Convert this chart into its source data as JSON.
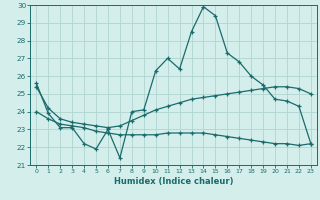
{
  "xlabel": "Humidex (Indice chaleur)",
  "bg_color": "#d4eeec",
  "grid_color": "#b0d4d0",
  "line_color": "#1a6b6b",
  "x": [
    0,
    1,
    2,
    3,
    4,
    5,
    6,
    7,
    8,
    9,
    10,
    11,
    12,
    13,
    14,
    15,
    16,
    17,
    18,
    19,
    20,
    21,
    22,
    23
  ],
  "line1": [
    25.6,
    23.9,
    23.1,
    23.1,
    22.2,
    21.9,
    23.0,
    21.4,
    24.0,
    24.1,
    26.3,
    27.0,
    26.4,
    28.5,
    29.9,
    29.4,
    27.3,
    26.8,
    26.0,
    25.5,
    24.7,
    24.6,
    24.3,
    22.2
  ],
  "line2": [
    25.4,
    24.2,
    23.6,
    23.4,
    23.3,
    23.2,
    23.1,
    23.2,
    23.5,
    23.8,
    24.1,
    24.3,
    24.5,
    24.7,
    24.8,
    24.9,
    25.0,
    25.1,
    25.2,
    25.3,
    25.4,
    25.4,
    25.3,
    25.0
  ],
  "line3": [
    24.0,
    23.6,
    23.3,
    23.2,
    23.1,
    22.9,
    22.8,
    22.7,
    22.7,
    22.7,
    22.7,
    22.8,
    22.8,
    22.8,
    22.8,
    22.7,
    22.6,
    22.5,
    22.4,
    22.3,
    22.2,
    22.2,
    22.1,
    22.2
  ],
  "ylim": [
    21,
    30
  ],
  "xlim": [
    -0.5,
    23.5
  ],
  "yticks": [
    21,
    22,
    23,
    24,
    25,
    26,
    27,
    28,
    29,
    30
  ],
  "xticks": [
    0,
    1,
    2,
    3,
    4,
    5,
    6,
    7,
    8,
    9,
    10,
    11,
    12,
    13,
    14,
    15,
    16,
    17,
    18,
    19,
    20,
    21,
    22,
    23
  ]
}
